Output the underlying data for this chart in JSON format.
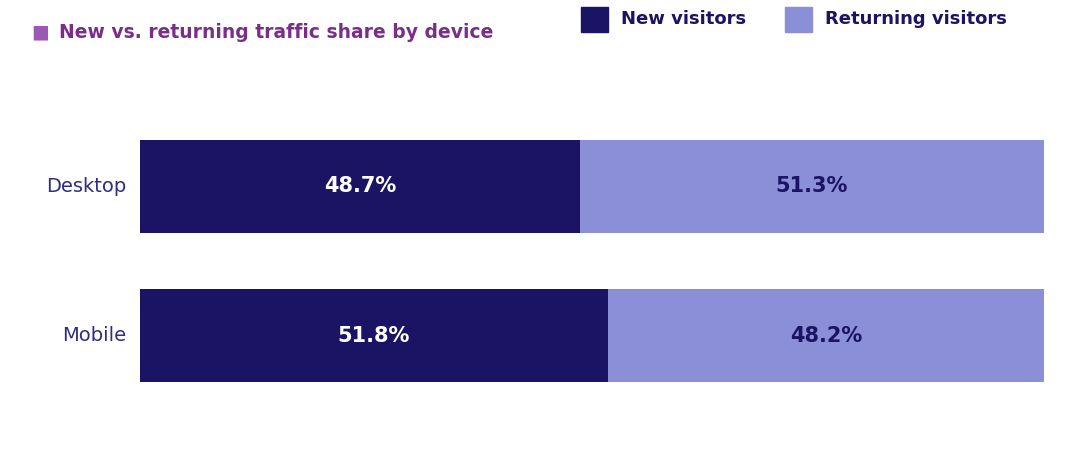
{
  "title": "New vs. returning traffic share by device",
  "title_color": "#7B2D8B",
  "title_bullet": "■",
  "title_bullet_color": "#9B59B6",
  "categories": [
    "Desktop",
    "Mobile"
  ],
  "new_visitors": [
    48.7,
    51.8
  ],
  "returning_visitors": [
    51.3,
    48.2
  ],
  "new_color": "#1b1464",
  "returning_color": "#8b8fd8",
  "label_color_new": "#ffffff",
  "label_color_returning": "#1b1464",
  "legend_new": "New visitors",
  "legend_returning": "Returning visitors",
  "category_label_color": "#2e2d83",
  "background_color": "#ffffff",
  "bar_height": 0.62,
  "title_fontsize": 13.5,
  "label_fontsize": 15,
  "category_fontsize": 14,
  "legend_fontsize": 13
}
